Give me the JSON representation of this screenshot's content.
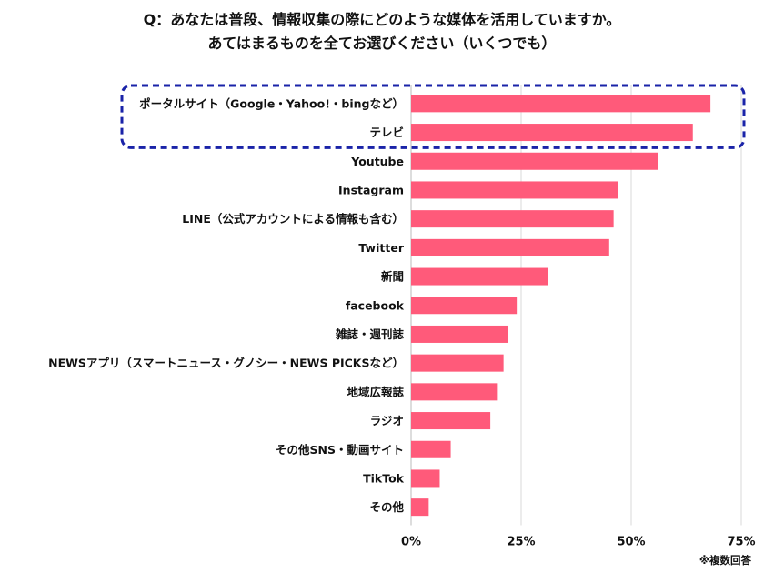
{
  "title": {
    "line1": "Q：あなたは普段、情報収集の際にどのような媒体を活用していますか。",
    "line2": "あてはまるものを全てお選びください（いくつでも）"
  },
  "note": "※複数回答",
  "colors": {
    "bar": "#ff5a7a",
    "highlight_box": "#1a23a8",
    "grid": "#d9d9d9"
  },
  "chart_data": {
    "type": "bar",
    "orientation": "horizontal",
    "categories": [
      "ポータルサイト（Google・Yahoo!・bingなど）",
      "テレビ",
      "Youtube",
      "Instagram",
      "LINE（公式アカウントによる情報も含む）",
      "Twitter",
      "新聞",
      "facebook",
      "雑誌・週刊誌",
      "NEWSアプリ（スマートニュース・グノシー・NEWS PICKSなど）",
      "地域広報誌",
      "ラジオ",
      "その他SNS・動画サイト",
      "TikTok",
      "その他"
    ],
    "values": [
      68,
      64,
      56,
      47,
      46,
      45,
      31,
      24,
      22,
      21,
      19.5,
      18,
      9,
      6.5,
      4
    ],
    "value_unit": "%",
    "xlim": [
      0,
      75
    ],
    "xticks": [
      0,
      25,
      50,
      75
    ],
    "xtick_labels": [
      "0%",
      "25%",
      "50%",
      "75%"
    ],
    "grid": "vertical",
    "highlighted_categories": [
      0,
      1
    ]
  }
}
